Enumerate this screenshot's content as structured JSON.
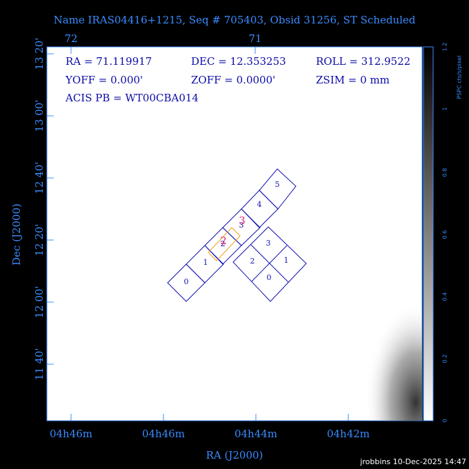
{
  "header": {
    "title": "Name IRAS04416+1215, Seq # 705403, Obsid 31256, ST Scheduled"
  },
  "axes": {
    "x_title": "RA (J2000)",
    "y_title": "Dec (J2000)",
    "top_ticks": [
      "72",
      "71"
    ],
    "bottom_ticks": [
      "04h46m",
      "04h46m",
      "04h44m",
      "04h42m"
    ],
    "left_ticks": [
      "13 20'",
      "13 00'",
      "12 40'",
      "12 20'",
      "12 00'",
      "11 40'"
    ]
  },
  "info": {
    "rows": [
      [
        "RA = 71.119917",
        "DEC = 12.353253",
        "ROLL = 312.9522"
      ],
      [
        "YOFF =    0.000'",
        "ZOFF =  0.0000'",
        "ZSIM = 0 mm"
      ],
      [
        "ACIS PB = WT00CBA014"
      ]
    ]
  },
  "chips": {
    "acis_s": [
      "0",
      "1",
      "2",
      "3",
      "4",
      "5"
    ],
    "acis_i": [
      "3",
      "2",
      "1",
      "0"
    ],
    "highlight": [
      "2",
      "3"
    ]
  },
  "colorbar": {
    "label": "PSPC cts/s/pixel",
    "ticks": [
      "0",
      "0.2",
      "0.4",
      "0.6",
      "0.8",
      "1",
      "1.2"
    ]
  },
  "footer": {
    "credit": "jrobbins 10-Dec-2025 14:47"
  }
}
